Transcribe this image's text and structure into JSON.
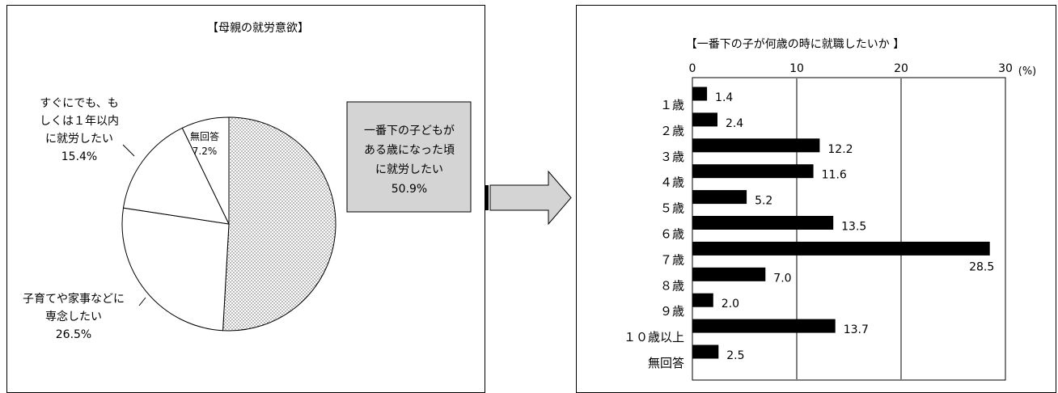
{
  "pie_chart": {
    "title": "【母親の就労意欲】",
    "labels": [
      {
        "lines": [
          "一番下の子どもが",
          "ある歳になった頃",
          "に就労したい",
          "50.9%"
        ]
      },
      {
        "lines": [
          "子育てや家事などに",
          "専念したい",
          "26.5%"
        ]
      },
      {
        "lines": [
          "すぐにでも、も",
          "しくは１年以内",
          "に就労したい",
          "15.4%"
        ]
      },
      {
        "lines": [
          "無回答",
          "7.2%"
        ]
      }
    ]
  },
  "bar_chart": {
    "title": "【一番下の子が何歳の時に就職したいか 】",
    "unit": "(%)",
    "ticks": [
      "0",
      "10",
      "20",
      "30"
    ]
  },
  "chart_data": [
    {
      "type": "pie",
      "title": "【母親の就労意欲】",
      "categories": [
        "一番下の子どもがある歳になった頃に就労したい",
        "子育てや家事などに専念したい",
        "すぐにでも、もしくは１年以内に就労したい",
        "無回答"
      ],
      "values": [
        50.9,
        26.5,
        15.4,
        7.2
      ],
      "colors": [
        "dotted",
        "#ffffff",
        "#ffffff",
        "#ffffff"
      ]
    },
    {
      "type": "bar",
      "orientation": "horizontal",
      "title": "【一番下の子が何歳の時に就職したいか 】",
      "unit": "(%)",
      "categories": [
        "１歳",
        "２歳",
        "３歳",
        "４歳",
        "５歳",
        "６歳",
        "７歳",
        "８歳",
        "９歳",
        "１０歳以上",
        "無回答"
      ],
      "values": [
        1.4,
        2.4,
        12.2,
        11.6,
        5.2,
        13.5,
        28.5,
        7.0,
        2.0,
        13.7,
        2.5
      ],
      "value_labels": [
        "1.4",
        "2.4",
        "12.2",
        "11.6",
        "5.2",
        "13.5",
        "28.5",
        "7.0",
        "2.0",
        "13.7",
        "2.5"
      ],
      "xlim": [
        0,
        30
      ],
      "xticks": [
        0,
        10,
        20,
        30
      ],
      "grid": true,
      "bar_color": "#000000"
    }
  ]
}
